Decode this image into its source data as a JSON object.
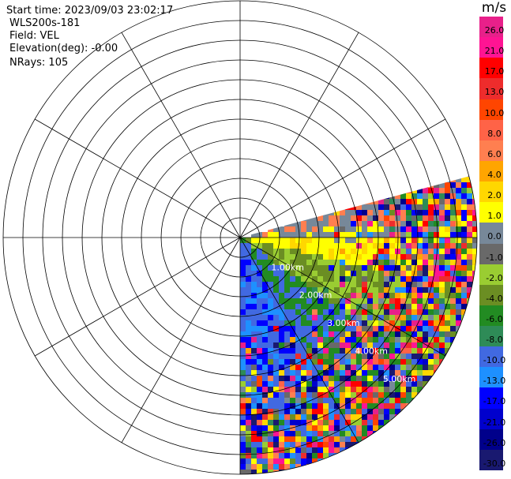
{
  "header": {
    "start_time": "Start time: 2023/09/03 23:02:17",
    "instrument": "WLS200s-181",
    "field": "Field: VEL",
    "elevation": "Elevation(deg): -0.00",
    "nrays": "NRays: 105"
  },
  "chart_data": {
    "type": "heatmap",
    "projection": "polar PPI",
    "field": "VEL",
    "range_rings_km": [
      0.5,
      1.0,
      1.5,
      2.0,
      2.5,
      3.0,
      3.5,
      4.0,
      4.5,
      5.0,
      5.5,
      6.0
    ],
    "range_labels": [
      "1.00km",
      "2.00km",
      "3.00km",
      "4.00km",
      "5.00km"
    ],
    "spokes_deg": [
      0,
      30,
      60,
      90,
      120,
      150,
      180,
      210,
      240,
      270,
      300,
      330
    ],
    "sector_azimuth_deg": [
      75,
      180
    ],
    "max_range_km": 6.0,
    "colorbar": {
      "unit": "m/s",
      "ticks": [
        "26.0",
        "21.0",
        "17.0",
        "13.0",
        "10.0",
        "8.0",
        "6.0",
        "4.0",
        "2.0",
        "1.0",
        "0.0",
        "-1.0",
        "-2.0",
        "-4.0",
        "-6.0",
        "-8.0",
        "-10.0",
        "-13.0",
        "-17.0",
        "-21.0",
        "-26.0",
        "-30.0"
      ],
      "colors": [
        "#e8208a",
        "#ff1493",
        "#ff0000",
        "#ee2c2c",
        "#ff4500",
        "#ff6347",
        "#ff7f50",
        "#ffa500",
        "#ffd700",
        "#ffff00",
        "#778899",
        "#696969",
        "#9acd32",
        "#6b8e23",
        "#228b22",
        "#2e8b57",
        "#4169e1",
        "#1e90ff",
        "#0000ff",
        "#0000cd",
        "#00008b",
        "#191970"
      ]
    }
  }
}
